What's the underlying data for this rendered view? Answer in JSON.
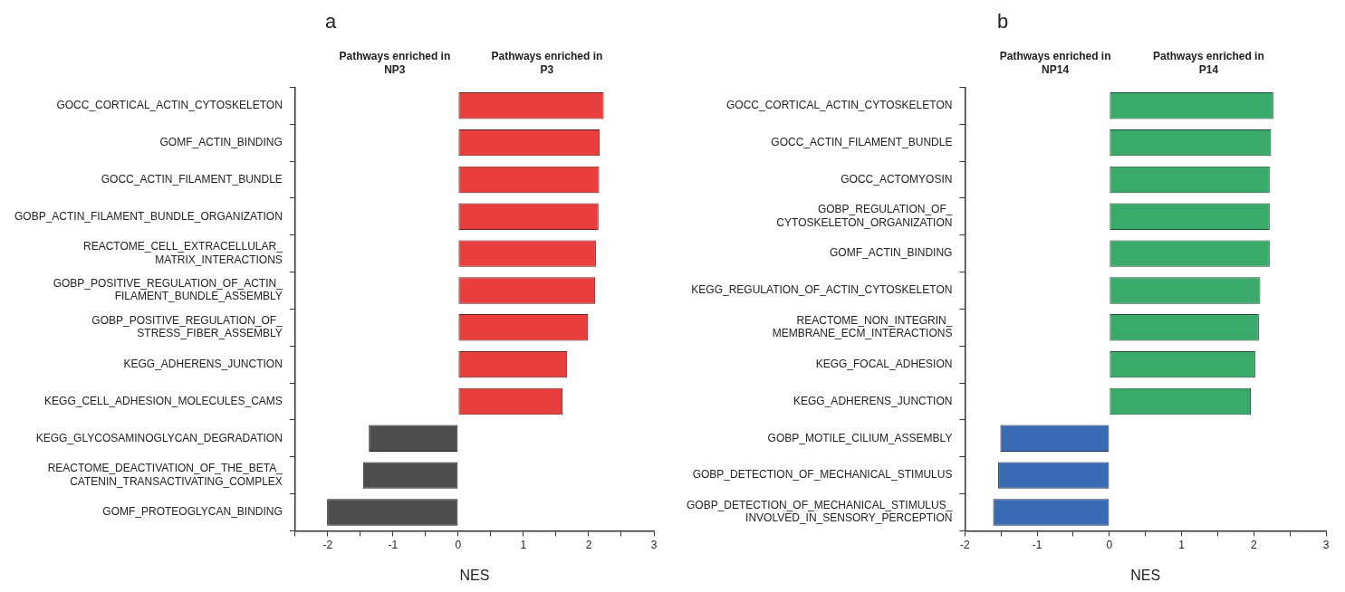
{
  "chart_data": [
    {
      "type": "bar",
      "title": "a",
      "xlabel": "NES",
      "orientation": "horizontal",
      "grid": false,
      "legend": false,
      "annotations": [
        "Pathways enriched in NP3",
        "Pathways enriched in P3"
      ],
      "categories": [
        "GOCC_CORTICAL_ACTIN_CYTOSKELETON",
        "GOMF_ACTIN_BINDING",
        "GOCC_ACTIN_FILAMENT_BUNDLE",
        "GOBP_ACTIN_FILAMENT_BUNDLE_ORGANIZATION",
        "REACTOME_CELL_EXTRACELLULAR_\nMATRIX_INTERACTIONS",
        "GOBP_POSITIVE_REGULATION_OF_ACTIN_\nFILAMENT_BUNDLE_ASSEMBLY",
        "GOBP_POSITIVE_REGULATION_OF_\nSTRESS_FIBER_ASSEMBLY",
        "KEGG_ADHERENS_JUNCTION",
        "KEGG_CELL_ADHESION_MOLECULES_CAMS",
        "KEGG_GLYCOSAMINOGLYCAN_DEGRADATION",
        "REACTOME_DEACTIVATION_OF_THE_BETA_\nCATENIN_TRANSACTIVATING_COMPLEX",
        "GOMF_PROTEOGLYCAN_BINDING"
      ],
      "values": [
        2.23,
        2.17,
        2.16,
        2.15,
        2.11,
        2.1,
        1.99,
        1.67,
        1.6,
        -1.37,
        -1.46,
        -2.01
      ],
      "colors": [
        "#e83e3e",
        "#e83e3e",
        "#e83e3e",
        "#e83e3e",
        "#e83e3e",
        "#e83e3e",
        "#e83e3e",
        "#e83e3e",
        "#e83e3e",
        "#4d4d4d",
        "#4d4d4d",
        "#4d4d4d"
      ],
      "xlim": [
        -2.5,
        3
      ],
      "xticks": [
        {
          "value": -2.5,
          "label": null
        },
        -2,
        {
          "value": -1.5,
          "label": null
        },
        -1,
        {
          "value": -0.5,
          "label": null
        },
        0,
        {
          "value": 0.5,
          "label": null
        },
        1,
        {
          "value": 1.5,
          "label": null
        },
        2,
        {
          "value": 2.5,
          "label": null
        },
        3
      ]
    },
    {
      "type": "bar",
      "title": "b",
      "xlabel": "NES",
      "orientation": "horizontal",
      "grid": false,
      "legend": false,
      "annotations": [
        "Pathways enriched in NP14",
        "Pathways enriched in P14"
      ],
      "categories": [
        "GOCC_CORTICAL_ACTIN_CYTOSKELETON",
        "GOCC_ACTIN_FILAMENT_BUNDLE",
        "GOCC_ACTOMYOSIN",
        "GOBP_REGULATION_OF_\nCYTOSKELETON_ORGANIZATION",
        "GOMF_ACTIN_BINDING",
        "KEGG_REGULATION_OF_ACTIN_CYTOSKELETON",
        "REACTOME_NON_INTEGRIN_\nMEMBRANE_ECM_INTERACTIONS",
        "KEGG_FOCAL_ADHESION",
        "KEGG_ADHERENS_JUNCTION",
        "GOBP_MOTILE_CILIUM_ASSEMBLY",
        "GOBP_DETECTION_OF_MECHANICAL_STIMULUS",
        "GOBP_DETECTION_OF_MECHANICAL_STIMULUS_\nINVOLVED_IN_SENSORY_PERCEPTION"
      ],
      "values": [
        2.27,
        2.24,
        2.22,
        2.22,
        2.22,
        2.09,
        2.07,
        2.02,
        1.96,
        -1.51,
        -1.54,
        -1.61
      ],
      "colors": [
        "#3aaa6a",
        "#3aaa6a",
        "#3aaa6a",
        "#3aaa6a",
        "#3aaa6a",
        "#3aaa6a",
        "#3aaa6a",
        "#3aaa6a",
        "#3aaa6a",
        "#3b6ab5",
        "#3b6ab5",
        "#3b6ab5"
      ],
      "xlim": [
        -2,
        3
      ],
      "xticks": [
        -2,
        {
          "value": -1.5,
          "label": null
        },
        -1,
        {
          "value": -0.5,
          "label": null
        },
        0,
        {
          "value": 0.5,
          "label": null
        },
        1,
        {
          "value": 1.5,
          "label": null
        },
        2,
        {
          "value": 2.5,
          "label": null
        },
        3
      ]
    }
  ]
}
